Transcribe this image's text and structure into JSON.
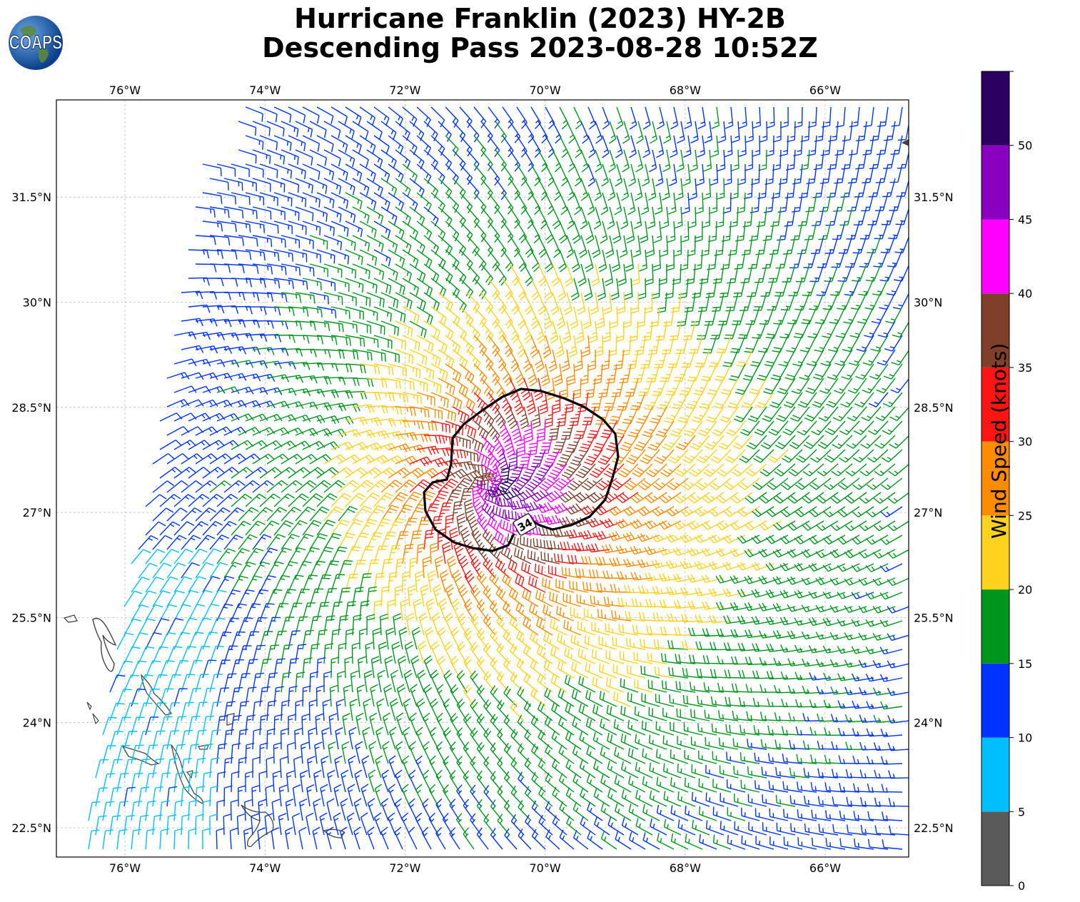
{
  "title": {
    "line1": "Hurricane Franklin (2023) HY-2B",
    "line2": "Descending Pass 2023-08-28 10:52Z"
  },
  "logo": {
    "text": "COAPS",
    "icon": "globe-icon"
  },
  "map": {
    "lon_ticks": [
      "76°W",
      "74°W",
      "72°W",
      "70°W",
      "68°W",
      "66°W"
    ],
    "lat_ticks": [
      "31.5°N",
      "30°N",
      "28.5°N",
      "27°N",
      "25.5°N",
      "24°N",
      "22.5°N"
    ],
    "lon_values": [
      -76,
      -74,
      -72,
      -70,
      -68,
      -66
    ],
    "lat_values": [
      31.5,
      30,
      28.5,
      27,
      25.5,
      24,
      22.5
    ],
    "lon_range": [
      -77,
      -64.8
    ],
    "lat_range": [
      22.1,
      32.9
    ],
    "storm_center": {
      "lon": -70.8,
      "lat": 27.4
    },
    "contour_label": "34",
    "contour_color": "#000000",
    "gridlines": true,
    "coastline_color": "#333333"
  },
  "colorbar": {
    "label": "Wind Speed (knots)",
    "tick_labels": [
      "0",
      "5",
      "10",
      "15",
      "20",
      "25",
      "30",
      "35",
      "40",
      "45",
      "50"
    ],
    "bins": [
      {
        "from": 0,
        "to": 5,
        "color": "#5a5a5a"
      },
      {
        "from": 5,
        "to": 10,
        "color": "#00bfff"
      },
      {
        "from": 10,
        "to": 15,
        "color": "#0033ff"
      },
      {
        "from": 15,
        "to": 20,
        "color": "#00961e"
      },
      {
        "from": 20,
        "to": 25,
        "color": "#ffd21e"
      },
      {
        "from": 25,
        "to": 30,
        "color": "#ff8c00"
      },
      {
        "from": 30,
        "to": 35,
        "color": "#ff1414"
      },
      {
        "from": 35,
        "to": 40,
        "color": "#7f3f2a"
      },
      {
        "from": 40,
        "to": 45,
        "color": "#ff00ff"
      },
      {
        "from": 45,
        "to": 50,
        "color": "#8a00c0"
      },
      {
        "from": 50,
        "to": 55,
        "color": "#2a0060"
      }
    ]
  }
}
